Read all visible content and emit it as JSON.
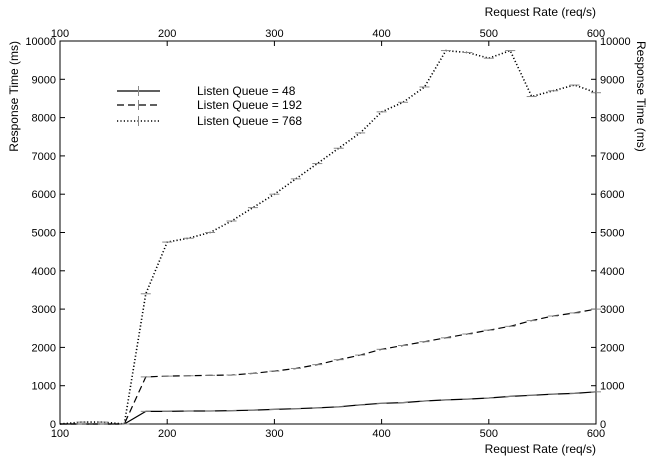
{
  "chart_data": {
    "type": "line",
    "xlabel": "Request Rate (req/s)",
    "ylabel": "Response Time (ms)",
    "xlim": [
      100,
      600
    ],
    "ylim": [
      0,
      10000
    ],
    "x_ticks": [
      100,
      200,
      300,
      400,
      500,
      600
    ],
    "y_ticks": [
      0,
      1000,
      2000,
      3000,
      4000,
      5000,
      6000,
      7000,
      8000,
      9000,
      10000
    ],
    "mirror_axes": true,
    "grid": false,
    "legend_position": "top-left",
    "series": [
      {
        "name": "Listen Queue = 48",
        "line_style": "solid",
        "color": "#000000",
        "x": [
          100,
          120,
          140,
          160,
          180,
          200,
          220,
          240,
          260,
          280,
          300,
          320,
          340,
          360,
          380,
          400,
          420,
          440,
          460,
          480,
          500,
          520,
          540,
          560,
          580,
          600
        ],
        "y": [
          0,
          0,
          0,
          0,
          330,
          330,
          340,
          340,
          350,
          360,
          380,
          400,
          420,
          450,
          500,
          540,
          560,
          600,
          630,
          650,
          680,
          720,
          750,
          780,
          800,
          840
        ]
      },
      {
        "name": "Listen Queue = 192",
        "line_style": "dashed",
        "color": "#000000",
        "x": [
          100,
          120,
          140,
          160,
          180,
          200,
          220,
          240,
          260,
          280,
          300,
          320,
          340,
          360,
          380,
          400,
          420,
          440,
          460,
          480,
          500,
          520,
          540,
          560,
          580,
          600
        ],
        "y": [
          0,
          0,
          0,
          0,
          1230,
          1250,
          1260,
          1270,
          1280,
          1320,
          1380,
          1450,
          1550,
          1680,
          1800,
          1950,
          2050,
          2150,
          2250,
          2350,
          2450,
          2550,
          2700,
          2820,
          2900,
          3000
        ]
      },
      {
        "name": "Listen Queue = 768",
        "line_style": "dotted",
        "color": "#000000",
        "x": [
          100,
          120,
          140,
          160,
          180,
          200,
          220,
          240,
          260,
          280,
          300,
          320,
          340,
          360,
          380,
          400,
          420,
          440,
          460,
          480,
          500,
          520,
          540,
          560,
          580,
          600
        ],
        "y": [
          0,
          50,
          50,
          0,
          3400,
          4750,
          4850,
          5000,
          5300,
          5650,
          6000,
          6400,
          6800,
          7200,
          7600,
          8150,
          8400,
          8800,
          9750,
          9700,
          9550,
          9750,
          8550,
          8700,
          8850,
          8650
        ]
      }
    ]
  }
}
